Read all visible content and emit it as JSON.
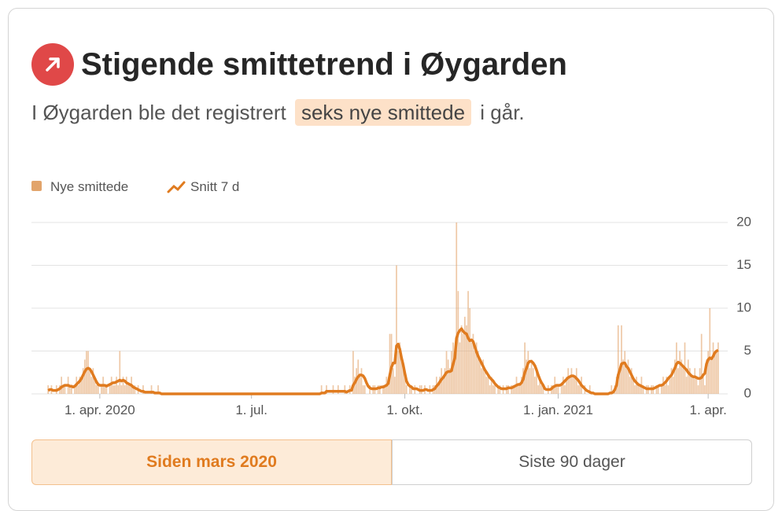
{
  "header": {
    "title": "Stigende smittetrend i Øygarden",
    "subtitle_before": "I Øygarden ble det registrert",
    "subtitle_highlight": "seks nye smittede",
    "subtitle_after": "i går."
  },
  "chart_data": {
    "type": "bar",
    "series": [
      {
        "name": "Nye smittede",
        "color": "#e2a46b",
        "values": [
          1,
          0,
          1,
          0,
          0,
          1,
          0,
          1,
          2,
          1,
          1,
          0,
          2,
          1,
          1,
          0,
          1,
          2,
          1,
          2,
          2,
          3,
          4,
          5,
          5,
          3,
          2,
          3,
          2,
          1,
          1,
          0,
          1,
          2,
          1,
          1,
          0,
          1,
          2,
          1,
          1,
          2,
          1,
          5,
          1,
          2,
          1,
          2,
          1,
          1,
          2,
          1,
          1,
          0,
          1,
          0,
          0,
          1,
          0,
          0,
          0,
          0,
          1,
          0,
          0,
          0,
          1,
          0,
          0,
          0,
          0,
          0,
          0,
          0,
          0,
          0,
          0,
          0,
          0,
          0,
          0,
          0,
          0,
          0,
          0,
          0,
          0,
          0,
          0,
          0,
          0,
          0,
          0,
          0,
          0,
          0,
          0,
          0,
          0,
          0,
          0,
          0,
          0,
          0,
          0,
          0,
          0,
          0,
          0,
          0,
          0,
          0,
          0,
          0,
          0,
          0,
          0,
          0,
          0,
          0,
          0,
          0,
          0,
          0,
          0,
          0,
          0,
          0,
          0,
          0,
          0,
          0,
          0,
          0,
          0,
          0,
          0,
          0,
          0,
          0,
          0,
          0,
          0,
          0,
          0,
          0,
          0,
          0,
          0,
          0,
          0,
          0,
          0,
          0,
          0,
          0,
          0,
          0,
          0,
          0,
          0,
          0,
          0,
          0,
          1,
          0,
          0,
          1,
          0,
          0,
          0,
          1,
          0,
          0,
          1,
          0,
          0,
          0,
          1,
          0,
          0,
          1,
          0,
          5,
          2,
          3,
          4,
          2,
          3,
          1,
          1,
          0,
          0,
          1,
          0,
          1,
          1,
          0,
          1,
          1,
          0,
          1,
          1,
          2,
          1,
          7,
          7,
          3,
          2,
          15,
          5,
          6,
          4,
          3,
          2,
          1,
          0,
          1,
          1,
          0,
          1,
          0,
          0,
          1,
          1,
          0,
          1,
          0,
          0,
          1,
          0,
          1,
          1,
          2,
          1,
          2,
          3,
          2,
          3,
          5,
          4,
          3,
          5,
          6,
          5,
          20,
          12,
          6,
          8,
          7,
          9,
          8,
          12,
          10,
          6,
          7,
          5,
          6,
          5,
          4,
          3,
          4,
          3,
          2,
          2,
          1,
          2,
          1,
          1,
          0,
          1,
          1,
          0,
          1,
          0,
          1,
          1,
          0,
          1,
          1,
          1,
          2,
          1,
          1,
          2,
          3,
          6,
          4,
          5,
          3,
          4,
          3,
          2,
          3,
          1,
          2,
          1,
          1,
          0,
          0,
          1,
          0,
          1,
          1,
          2,
          1,
          1,
          0,
          1,
          2,
          1,
          2,
          3,
          2,
          3,
          2,
          2,
          3,
          1,
          1,
          2,
          0,
          1,
          0,
          0,
          1,
          0,
          0,
          0,
          0,
          0,
          0,
          0,
          0,
          0,
          0,
          0,
          0,
          1,
          0,
          1,
          2,
          8,
          3,
          8,
          4,
          5,
          3,
          4,
          2,
          3,
          2,
          1,
          2,
          1,
          1,
          2,
          1,
          0,
          1,
          1,
          0,
          1,
          1,
          0,
          1,
          1,
          0,
          1,
          2,
          1,
          2,
          1,
          2,
          3,
          2,
          4,
          6,
          3,
          5,
          4,
          3,
          6,
          2,
          4,
          3,
          2,
          2,
          3,
          2,
          1,
          3,
          7,
          2,
          1,
          4,
          5,
          10,
          4,
          6,
          5,
          5,
          6
        ]
      },
      {
        "name": "Snitt 7 d",
        "color": "#e07b1f",
        "type": "line",
        "values": [
          0.4,
          0.5,
          0.5,
          0.4,
          0.4,
          0.4,
          0.5,
          0.6,
          0.8,
          0.9,
          1,
          1,
          1,
          0.9,
          0.9,
          0.8,
          0.9,
          1.1,
          1.3,
          1.5,
          1.8,
          2.2,
          2.6,
          2.9,
          3,
          2.9,
          2.6,
          2.2,
          1.8,
          1.4,
          1.1,
          1,
          1,
          1,
          1,
          0.9,
          1,
          1.1,
          1.2,
          1.3,
          1.3,
          1.4,
          1.5,
          1.6,
          1.5,
          1.6,
          1.5,
          1.3,
          1.2,
          1.1,
          1,
          0.8,
          0.7,
          0.6,
          0.5,
          0.4,
          0.3,
          0.3,
          0.2,
          0.2,
          0.2,
          0.2,
          0.2,
          0.2,
          0.1,
          0.1,
          0.1,
          0.1,
          0,
          0,
          0,
          0,
          0,
          0,
          0,
          0,
          0,
          0,
          0,
          0,
          0,
          0,
          0,
          0,
          0,
          0,
          0,
          0,
          0,
          0,
          0,
          0,
          0,
          0,
          0,
          0,
          0,
          0,
          0,
          0,
          0,
          0,
          0,
          0,
          0,
          0,
          0,
          0,
          0,
          0,
          0,
          0,
          0,
          0,
          0,
          0,
          0,
          0,
          0,
          0,
          0,
          0,
          0,
          0,
          0,
          0,
          0,
          0,
          0,
          0,
          0,
          0,
          0,
          0,
          0,
          0,
          0,
          0,
          0,
          0,
          0,
          0,
          0,
          0,
          0,
          0,
          0,
          0,
          0,
          0,
          0,
          0,
          0,
          0,
          0,
          0,
          0,
          0,
          0,
          0,
          0,
          0,
          0,
          0,
          0.1,
          0.1,
          0.1,
          0.3,
          0.3,
          0.3,
          0.3,
          0.3,
          0.3,
          0.3,
          0.3,
          0.3,
          0.3,
          0.3,
          0.3,
          0.2,
          0.3,
          0.4,
          0.4,
          1,
          1.3,
          1.7,
          2,
          2.2,
          2.2,
          2.1,
          1.8,
          1.3,
          0.9,
          0.7,
          0.6,
          0.6,
          0.6,
          0.6,
          0.7,
          0.7,
          0.8,
          0.8,
          0.9,
          1,
          1.2,
          2.2,
          3.1,
          3.6,
          3.6,
          5.6,
          5.8,
          5.2,
          4.2,
          3.4,
          2.4,
          1.5,
          1.1,
          0.9,
          0.8,
          0.6,
          0.6,
          0.6,
          0.5,
          0.4,
          0.4,
          0.4,
          0.5,
          0.5,
          0.4,
          0.4,
          0.4,
          0.5,
          0.6,
          0.9,
          1.1,
          1.4,
          1.7,
          1.9,
          2.2,
          2.5,
          2.6,
          2.6,
          2.7,
          3.5,
          4.2,
          6.5,
          7.1,
          7.4,
          7.6,
          7.3,
          7.1,
          7,
          6.5,
          6.2,
          6.3,
          6.1,
          5.5,
          4.9,
          4.4,
          4,
          3.6,
          3.2,
          2.8,
          2.5,
          2.2,
          1.9,
          1.7,
          1.5,
          1.2,
          1,
          0.8,
          0.7,
          0.6,
          0.6,
          0.6,
          0.6,
          0.7,
          0.7,
          0.7,
          0.8,
          0.9,
          1,
          1.1,
          1.1,
          1.3,
          1.7,
          2.5,
          3,
          3.6,
          3.8,
          3.8,
          3.6,
          3.3,
          2.8,
          2.2,
          1.7,
          1.3,
          1,
          0.6,
          0.5,
          0.5,
          0.5,
          0.6,
          0.8,
          0.9,
          1,
          1,
          1,
          1.1,
          1.3,
          1.5,
          1.7,
          1.9,
          2,
          2.1,
          2.1,
          2,
          1.8,
          1.6,
          1.3,
          1,
          0.8,
          0.6,
          0.4,
          0.3,
          0.2,
          0.1,
          0.1,
          0,
          0,
          0,
          0,
          0,
          0,
          0,
          0,
          0,
          0.1,
          0.1,
          0.2,
          0.5,
          1,
          2.2,
          2.8,
          3.5,
          3.6,
          3.6,
          3.2,
          3,
          2.6,
          2.2,
          1.8,
          1.5,
          1.3,
          1.1,
          1,
          0.9,
          0.8,
          0.7,
          0.6,
          0.6,
          0.6,
          0.6,
          0.6,
          0.7,
          0.8,
          0.9,
          1,
          1,
          1.1,
          1.3,
          1.5,
          1.8,
          2,
          2.2,
          2.6,
          3,
          3.5,
          3.7,
          3.6,
          3.4,
          3.2,
          3,
          2.8,
          2.5,
          2.3,
          2.1,
          2,
          2,
          1.9,
          1.8,
          1.8,
          1.9,
          2.2,
          2.4,
          3.5,
          4,
          4.2,
          4.1,
          4.4,
          4.8,
          5,
          5.1
        ]
      }
    ],
    "xlim": [
      -10,
      403
    ],
    "xticks": [
      {
        "value": 31,
        "label": "1. apr. 2020"
      },
      {
        "value": 122,
        "label": "1. jul."
      },
      {
        "value": 214,
        "label": "1. okt."
      },
      {
        "value": 306,
        "label": "1. jan. 2021"
      },
      {
        "value": 396,
        "label": "1. apr."
      }
    ],
    "ylim": [
      0,
      20
    ],
    "yticks": [
      0,
      5,
      10,
      15,
      20
    ],
    "grid": true
  },
  "tabs": [
    {
      "label": "Siden mars 2020",
      "active": true
    },
    {
      "label": "Siste 90 dager",
      "active": false
    }
  ]
}
